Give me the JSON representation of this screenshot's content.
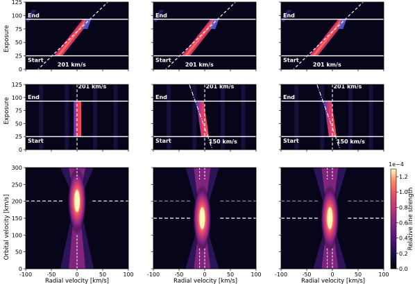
{
  "chart_data": {
    "type": "heatmap",
    "layout": "3x3 grid",
    "rows": [
      {
        "row": "top",
        "ylabel": "Exposure",
        "ylim": [
          0,
          125
        ],
        "yticks": [
          0,
          25,
          50,
          75,
          100,
          125
        ],
        "start_exposure": 25,
        "end_exposure": 93,
        "labels": {
          "start": "Start",
          "end": "End"
        },
        "panels": [
          {
            "velocity_label": "201 km/s",
            "trail_rv_start": -38,
            "trail_rv_end": 18
          },
          {
            "velocity_label": "201 km/s",
            "trail_rv_start": -38,
            "trail_rv_end": 18
          },
          {
            "velocity_label": "201 km/s",
            "trail_rv_start": -38,
            "trail_rv_end": 18
          }
        ]
      },
      {
        "row": "middle",
        "ylabel": "Exposure",
        "ylim": [
          0,
          125
        ],
        "yticks": [
          0,
          25,
          50,
          75,
          100,
          125
        ],
        "start_exposure": 25,
        "end_exposure": 93,
        "labels": {
          "start": "Start",
          "end": "End"
        },
        "panels": [
          {
            "top_label": "201 km/s",
            "bottom_label": null,
            "trail_rv_start": 0,
            "trail_rv_end": 0
          },
          {
            "top_label": "201 km/s",
            "bottom_label": "150 km/s",
            "trail_rv_start": 0,
            "trail_rv_end": -10
          },
          {
            "top_label": "201 km/s",
            "bottom_label": "150 km/s",
            "trail_rv_start": 0,
            "trail_rv_end": -10
          }
        ]
      },
      {
        "row": "bottom",
        "ylabel": "Orbital velocity [km/s]",
        "ylim": [
          0,
          300
        ],
        "yticks": [
          0,
          50,
          100,
          150,
          200,
          250,
          300
        ],
        "panels": [
          {
            "peak_rv": 0,
            "peak_orbital_velocity": 201,
            "dashed_levels": [
              201
            ]
          },
          {
            "peak_rv": -5,
            "peak_orbital_velocity": 150,
            "dashed_levels": [
              201,
              150
            ]
          },
          {
            "peak_rv": -5,
            "peak_orbital_velocity": 150,
            "dashed_levels": [
              201,
              150
            ]
          }
        ]
      }
    ],
    "xlabel": "Radial velocity [km/s]",
    "xlim": [
      -100,
      100
    ],
    "xticks": [
      -100,
      -50,
      0,
      50,
      100
    ],
    "colorbar": {
      "label": "Relative line strength",
      "exponent": "1e−4",
      "ticks": [
        "0.0",
        "0.2",
        "0.4",
        "0.6",
        "0.8",
        "1.0",
        "1.2"
      ],
      "min": 0,
      "max": 1.3,
      "colormap": "magma"
    }
  }
}
